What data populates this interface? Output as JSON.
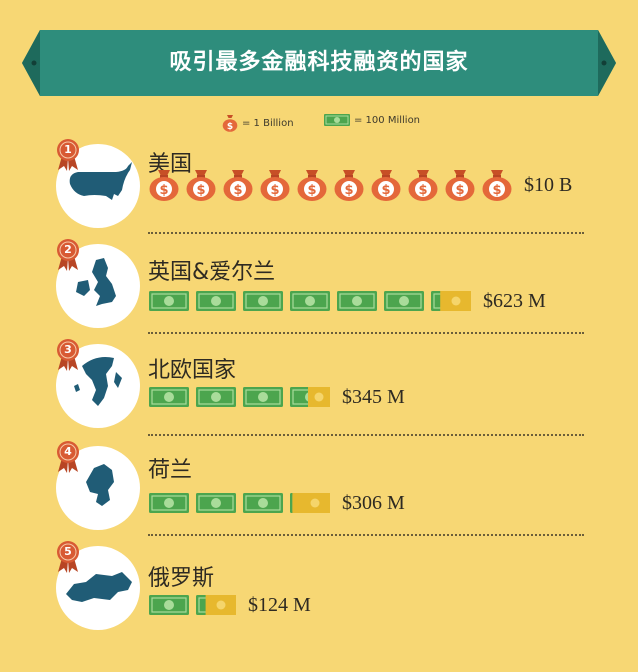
{
  "title": "吸引最多金融科技融资的国家",
  "legend": {
    "bag_label": "= 1 Billion",
    "bill_label": "= 100 Million"
  },
  "colors": {
    "background": "#f7d774",
    "banner": "#2e8d7c",
    "banner_dark": "#1e6a5c",
    "money_bag": "#e4683a",
    "bill_green": "#4ca54e",
    "bill_gold": "#e7b82e",
    "badge": "#d85a33",
    "map": "#205c76"
  },
  "chart_data": {
    "type": "bar",
    "title": "吸引最多金融科技融资的国家",
    "units": {
      "money_bag": 1000,
      "bill": 100,
      "amount_unit": "Million USD"
    },
    "categories": [
      "美国",
      "英国&爱尔兰",
      "北欧国家",
      "荷兰",
      "俄罗斯"
    ],
    "values": [
      10000,
      623,
      345,
      306,
      124
    ],
    "labels": [
      "$10 B",
      "$623 M",
      "$345 M",
      "$306 M",
      "$124 M"
    ],
    "icon_type": [
      "money_bag",
      "bill",
      "bill",
      "bill",
      "bill"
    ]
  },
  "rows": [
    {
      "rank": "1",
      "country": "美国",
      "map_icon": "usa-map-icon"
    },
    {
      "rank": "2",
      "country": "英国&爱尔兰",
      "map_icon": "uk-ireland-map-icon"
    },
    {
      "rank": "3",
      "country": "北欧国家",
      "map_icon": "nordic-map-icon"
    },
    {
      "rank": "4",
      "country": "荷兰",
      "map_icon": "netherlands-map-icon"
    },
    {
      "rank": "5",
      "country": "俄罗斯",
      "map_icon": "russia-map-icon"
    }
  ]
}
